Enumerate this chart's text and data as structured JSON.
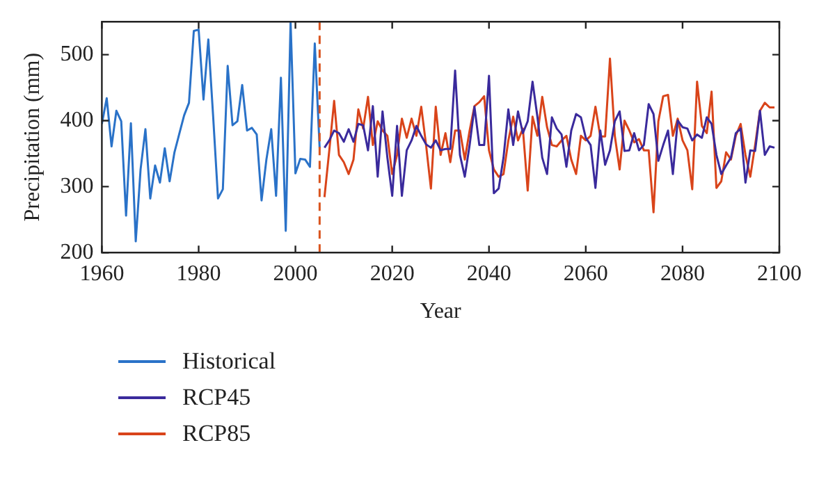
{
  "chart_data": {
    "type": "line",
    "xlabel": "Year",
    "ylabel": "Precipitation (mm)",
    "xlim": [
      1960,
      2100
    ],
    "xticks": [
      1960,
      1980,
      2000,
      2020,
      2040,
      2060,
      2080,
      2100
    ],
    "ylim": [
      200,
      550
    ],
    "yticks": [
      200,
      300,
      400,
      500
    ],
    "grid": false,
    "legend": "bottom left",
    "ref_lines": [
      {
        "axis": "x",
        "value": 2005,
        "color": "#d9541e",
        "line_style": "dashed"
      }
    ],
    "series": [
      {
        "name": "Historical",
        "color": "#2a72c8",
        "x": [
          1960,
          1961,
          1962,
          1963,
          1964,
          1965,
          1966,
          1967,
          1968,
          1969,
          1970,
          1971,
          1972,
          1973,
          1974,
          1975,
          1976,
          1977,
          1978,
          1979,
          1980,
          1981,
          1982,
          1983,
          1984,
          1985,
          1986,
          1987,
          1988,
          1989,
          1990,
          1991,
          1992,
          1993,
          1994,
          1995,
          1996,
          1997,
          1998,
          1999,
          2000,
          2001,
          2002,
          2003,
          2004,
          2005
        ],
        "values": [
          395,
          434,
          361,
          415,
          399,
          256,
          396,
          217,
          326,
          387,
          282,
          332,
          306,
          358,
          308,
          352,
          380,
          408,
          427,
          536,
          538,
          432,
          523,
          406,
          282,
          296,
          483,
          393,
          399,
          454,
          385,
          389,
          379,
          279,
          341,
          387,
          286,
          465,
          233,
          550,
          320,
          342,
          341,
          330,
          517,
          359
        ]
      },
      {
        "name": "RCP45",
        "color": "#3a2a9c",
        "x": [
          2006,
          2007,
          2008,
          2009,
          2010,
          2011,
          2012,
          2013,
          2014,
          2015,
          2016,
          2017,
          2018,
          2019,
          2020,
          2021,
          2022,
          2023,
          2024,
          2025,
          2026,
          2027,
          2028,
          2029,
          2030,
          2031,
          2032,
          2033,
          2034,
          2035,
          2036,
          2037,
          2038,
          2039,
          2040,
          2041,
          2042,
          2043,
          2044,
          2045,
          2046,
          2047,
          2048,
          2049,
          2050,
          2051,
          2052,
          2053,
          2054,
          2055,
          2056,
          2057,
          2058,
          2059,
          2060,
          2061,
          2062,
          2063,
          2064,
          2065,
          2066,
          2067,
          2068,
          2069,
          2070,
          2071,
          2072,
          2073,
          2074,
          2075,
          2076,
          2077,
          2078,
          2079,
          2080,
          2081,
          2082,
          2083,
          2084,
          2085,
          2086,
          2087,
          2088,
          2089,
          2090,
          2091,
          2092,
          2093,
          2094,
          2095,
          2096,
          2097,
          2098,
          2099
        ],
        "values": [
          359,
          370,
          385,
          381,
          368,
          387,
          368,
          395,
          393,
          355,
          422,
          315,
          414,
          344,
          286,
          392,
          286,
          355,
          370,
          392,
          377,
          364,
          359,
          370,
          355,
          357,
          357,
          476,
          348,
          315,
          363,
          421,
          363,
          363,
          468,
          290,
          297,
          344,
          417,
          363,
          414,
          381,
          399,
          459,
          406,
          344,
          319,
          405,
          388,
          379,
          330,
          385,
          410,
          405,
          374,
          363,
          298,
          385,
          333,
          355,
          399,
          414,
          354,
          355,
          381,
          355,
          363,
          425,
          410,
          339,
          363,
          385,
          319,
          400,
          390,
          388,
          370,
          379,
          374,
          405,
          395,
          348,
          319,
          332,
          344,
          381,
          388,
          306,
          355,
          354,
          415,
          348,
          361,
          359
        ]
      },
      {
        "name": "RCP85",
        "color": "#d9441a",
        "x": [
          2006,
          2007,
          2008,
          2009,
          2010,
          2011,
          2012,
          2013,
          2014,
          2015,
          2016,
          2017,
          2018,
          2019,
          2020,
          2021,
          2022,
          2023,
          2024,
          2025,
          2026,
          2027,
          2028,
          2029,
          2030,
          2031,
          2032,
          2033,
          2034,
          2035,
          2036,
          2037,
          2038,
          2039,
          2040,
          2041,
          2042,
          2043,
          2044,
          2045,
          2046,
          2047,
          2048,
          2049,
          2050,
          2051,
          2052,
          2053,
          2054,
          2055,
          2056,
          2057,
          2058,
          2059,
          2060,
          2061,
          2062,
          2063,
          2064,
          2065,
          2066,
          2067,
          2068,
          2069,
          2070,
          2071,
          2072,
          2073,
          2074,
          2075,
          2076,
          2077,
          2078,
          2079,
          2080,
          2081,
          2082,
          2083,
          2084,
          2085,
          2086,
          2087,
          2088,
          2089,
          2090,
          2091,
          2092,
          2093,
          2094,
          2095,
          2096,
          2097,
          2098,
          2099
        ],
        "values": [
          284,
          355,
          430,
          348,
          337,
          319,
          341,
          417,
          388,
          436,
          363,
          399,
          385,
          377,
          319,
          348,
          403,
          374,
          403,
          377,
          421,
          363,
          297,
          421,
          348,
          381,
          337,
          385,
          385,
          341,
          385,
          422,
          428,
          437,
          355,
          326,
          315,
          319,
          370,
          406,
          370,
          388,
          294,
          406,
          377,
          436,
          390,
          363,
          361,
          370,
          377,
          341,
          319,
          377,
          370,
          377,
          421,
          376,
          376,
          494,
          377,
          326,
          400,
          385,
          367,
          372,
          355,
          355,
          261,
          399,
          437,
          439,
          377,
          403,
          370,
          355,
          296,
          459,
          392,
          381,
          444,
          298,
          308,
          352,
          341,
          377,
          395,
          348,
          315,
          363,
          415,
          427,
          420,
          420
        ]
      }
    ]
  }
}
